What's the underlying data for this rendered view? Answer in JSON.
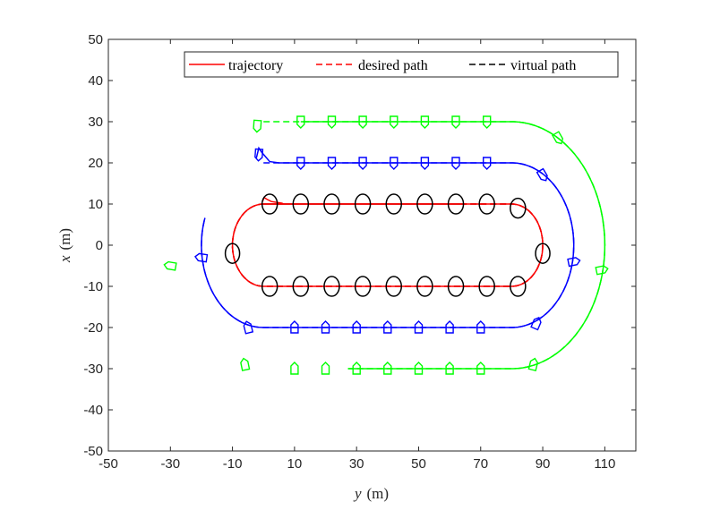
{
  "chart_data": {
    "type": "line",
    "title": "",
    "xlabel": "y",
    "xlabel_unit": "(m)",
    "ylabel": "x",
    "ylabel_unit": "(m)",
    "xlim": [
      -50,
      120
    ],
    "ylim": [
      -50,
      50
    ],
    "xticks": [
      "-50",
      "-30",
      "-10",
      "10",
      "30",
      "50",
      "70",
      "90",
      "110"
    ],
    "xtick_values": [
      -50,
      -30,
      -10,
      10,
      30,
      50,
      70,
      90,
      110
    ],
    "yticks": [
      "50",
      "40",
      "30",
      "20",
      "10",
      "0",
      "-10",
      "-20",
      "-30",
      "-40",
      "-50"
    ],
    "ytick_values": [
      50,
      40,
      30,
      20,
      10,
      0,
      -10,
      -20,
      -30,
      -40,
      -50
    ],
    "legend": {
      "location": "top-right",
      "entries": [
        {
          "label": "trajectory",
          "style": "solid",
          "color": "#ff0000"
        },
        {
          "label": "desired path",
          "style": "dashed",
          "color": "#ff0000"
        },
        {
          "label": "virtual path",
          "style": "dashed",
          "color": "#000000"
        }
      ]
    },
    "series": [
      {
        "name": "virtual path (red vessel)",
        "color": "#000000",
        "style": "dashed",
        "stadium": {
          "y_left": 0,
          "y_right": 80,
          "x_top": 10,
          "x_bottom": -10,
          "arc_start": 0,
          "arc_end": 287
        }
      },
      {
        "name": "desired path (red vessel)",
        "color": "#ff0000",
        "style": "dashed",
        "stadium": {
          "y_left": 0,
          "y_right": 80,
          "x_top": 10,
          "x_bottom": -10,
          "arc_start": 0,
          "arc_end": 287
        }
      },
      {
        "name": "trajectory (red vessel)",
        "color": "#ff0000",
        "style": "solid",
        "stadium": {
          "y_left": 0,
          "y_right": 80,
          "x_top": 10,
          "x_bottom": -10,
          "arc_start": 0,
          "arc_end": 287
        },
        "start_transient": [
          [
            -0.3,
            10.6
          ],
          [
            0.2,
            11.6
          ],
          [
            1.0,
            11.2
          ],
          [
            2.5,
            10.6
          ],
          [
            6,
            10.2
          ]
        ]
      },
      {
        "name": "blue vessel path",
        "color": "#0000ff",
        "style": "dashed",
        "stadium": {
          "y_left": 0,
          "y_right": 80,
          "x_top": 20,
          "x_bottom": -20,
          "arc_start": 0,
          "arc_end": 261
        }
      },
      {
        "name": "blue vessel trajectory",
        "color": "#0000ff",
        "style": "solid",
        "stadium": {
          "y_left": 0,
          "y_right": 80,
          "x_top": 20,
          "x_bottom": -20,
          "arc_start": 12,
          "arc_end": 261
        },
        "start_transient": [
          [
            -2.3,
            21.2
          ],
          [
            -1.5,
            23.6
          ],
          [
            -0.5,
            22.5
          ],
          [
            2,
            20.3
          ],
          [
            5,
            20
          ],
          [
            12,
            20
          ]
        ]
      },
      {
        "name": "green vessel path",
        "color": "#00ff00",
        "style": "dashed",
        "stadium": {
          "y_left": 0,
          "y_right": 80,
          "x_top": 30,
          "x_bottom": -30,
          "arc_start": 0,
          "arc_end": 227
        }
      },
      {
        "name": "green vessel trajectory",
        "color": "#00ff00",
        "style": "solid",
        "stadium": {
          "y_left": 0,
          "y_right": 80,
          "x_top": 30,
          "x_bottom": -30,
          "arc_start": 12,
          "arc_end": 227
        }
      }
    ],
    "ellipse_markers": [
      [
        2,
        10
      ],
      [
        12,
        10
      ],
      [
        22,
        10
      ],
      [
        32,
        10
      ],
      [
        42,
        10
      ],
      [
        52,
        10
      ],
      [
        62,
        10
      ],
      [
        72,
        10
      ],
      [
        82,
        9
      ],
      [
        90,
        -2
      ],
      [
        82,
        -10
      ],
      [
        72,
        -10
      ],
      [
        62,
        -10
      ],
      [
        52,
        -10
      ],
      [
        42,
        -10
      ],
      [
        32,
        -10
      ],
      [
        22,
        -10
      ],
      [
        12,
        -10
      ],
      [
        2,
        -10
      ],
      [
        -10,
        -2
      ]
    ],
    "blue_boat_markers": [
      [
        -1.5,
        22
      ],
      [
        12,
        20
      ],
      [
        22,
        20
      ],
      [
        32,
        20
      ],
      [
        42,
        20
      ],
      [
        52,
        20
      ],
      [
        62,
        20
      ],
      [
        72,
        20
      ],
      [
        90,
        17
      ],
      [
        100,
        -4
      ],
      [
        88,
        -19
      ],
      [
        70,
        -20
      ],
      [
        60,
        -20
      ],
      [
        50,
        -20
      ],
      [
        40,
        -20
      ],
      [
        30,
        -20
      ],
      [
        20,
        -20
      ],
      [
        10,
        -20
      ],
      [
        -5,
        -20
      ],
      [
        -20,
        -3
      ]
    ],
    "green_boat_markers": [
      [
        -2,
        29
      ],
      [
        12,
        30
      ],
      [
        22,
        30
      ],
      [
        32,
        30
      ],
      [
        42,
        30
      ],
      [
        52,
        30
      ],
      [
        62,
        30
      ],
      [
        72,
        30
      ],
      [
        95,
        26
      ],
      [
        109,
        -6
      ],
      [
        87,
        -29
      ],
      [
        70,
        -30
      ],
      [
        60,
        -30
      ],
      [
        50,
        -30
      ],
      [
        40,
        -30
      ],
      [
        30,
        -30
      ],
      [
        20,
        -30
      ],
      [
        10,
        -30
      ],
      [
        -6,
        -29
      ],
      [
        -30,
        -5
      ]
    ]
  }
}
